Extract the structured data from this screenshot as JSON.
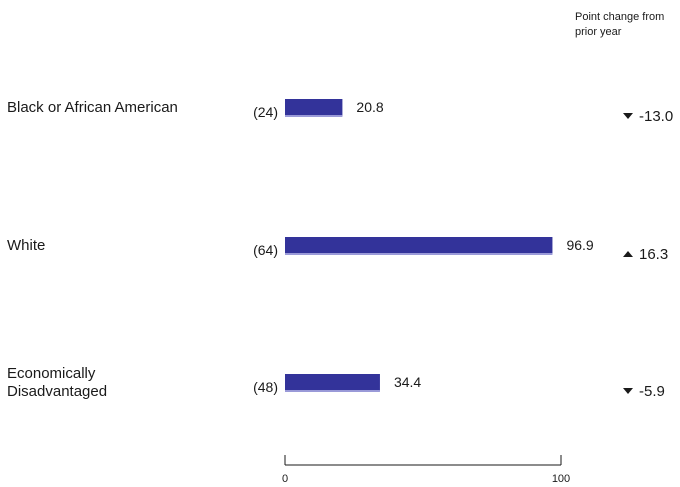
{
  "chart_data": {
    "type": "bar",
    "orientation": "horizontal",
    "categories": [
      "Black or African American",
      "White",
      "Economically Disadvantaged"
    ],
    "category_lines": [
      [
        "Black or African American"
      ],
      [
        "White"
      ],
      [
        "Economically",
        "Disadvantaged"
      ]
    ],
    "counts": [
      "(24)",
      "(64)",
      "(48)"
    ],
    "values": [
      20.8,
      96.9,
      34.4
    ],
    "value_labels": [
      "20.8",
      "96.9",
      "34.4"
    ],
    "change_header": [
      "Point change from",
      "prior year"
    ],
    "changes": [
      {
        "direction": "down",
        "label": "-13.0"
      },
      {
        "direction": "up",
        "label": "16.3"
      },
      {
        "direction": "down",
        "label": "-5.9"
      }
    ],
    "xlim": [
      0,
      100
    ],
    "ticks": [
      {
        "value": 0,
        "label": "0"
      },
      {
        "value": 100,
        "label": "100"
      }
    ],
    "bar_color": "#33339a",
    "underline_color": "#9a9ad8",
    "grid": false
  }
}
